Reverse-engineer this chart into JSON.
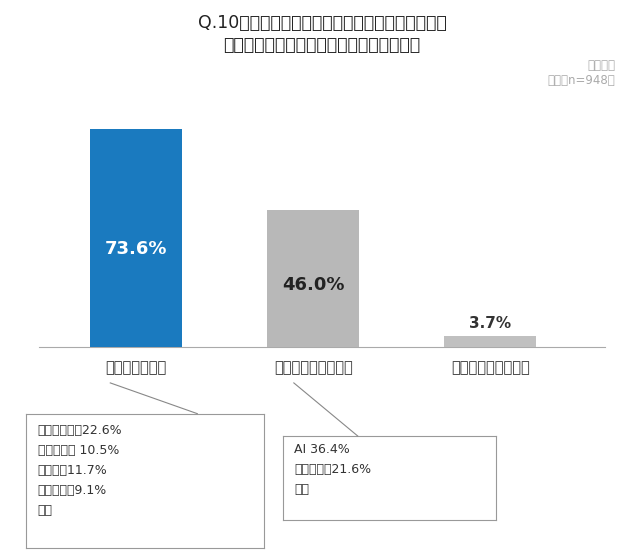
{
  "title_line1": "Q.10年後、今の自分の仕事を代替している存在が",
  "title_line2": "いるとしたら、それは何だと思いますか。",
  "note_line1": "複数回答",
  "note_line2": "全体（n=948）",
  "categories": [
    "自分以外の人間",
    "自動化テクノロジー",
    "仕事自体が消滅する"
  ],
  "values": [
    73.6,
    46.0,
    3.7
  ],
  "bar_colors": [
    "#1a7abf",
    "#b8b8b8",
    "#c0c0c0"
  ],
  "label_texts": [
    "73.6%",
    "46.0%",
    "3.7%"
  ],
  "label_color_0": "#ffffff",
  "label_color_1": "#222222",
  "label_color_2": "#222222",
  "box1_text": "後進の若者　22.6%\nアルバイト 10.5%\n外国人　11.7%\n競合他社　9.1%\nなど",
  "box2_text": "AI 36.4%\nロボット　21.6%\nなど",
  "background_color": "#ffffff",
  "title_fontsize": 12.5,
  "bar_label_fontsize": 13,
  "note_color": "#aaaaaa",
  "cat_label_color": "#333333",
  "box_text_color": "#333333",
  "line_color": "#888888",
  "ylim": [
    0,
    85
  ],
  "bar_width": 0.52,
  "x_positions": [
    0,
    1,
    2
  ]
}
